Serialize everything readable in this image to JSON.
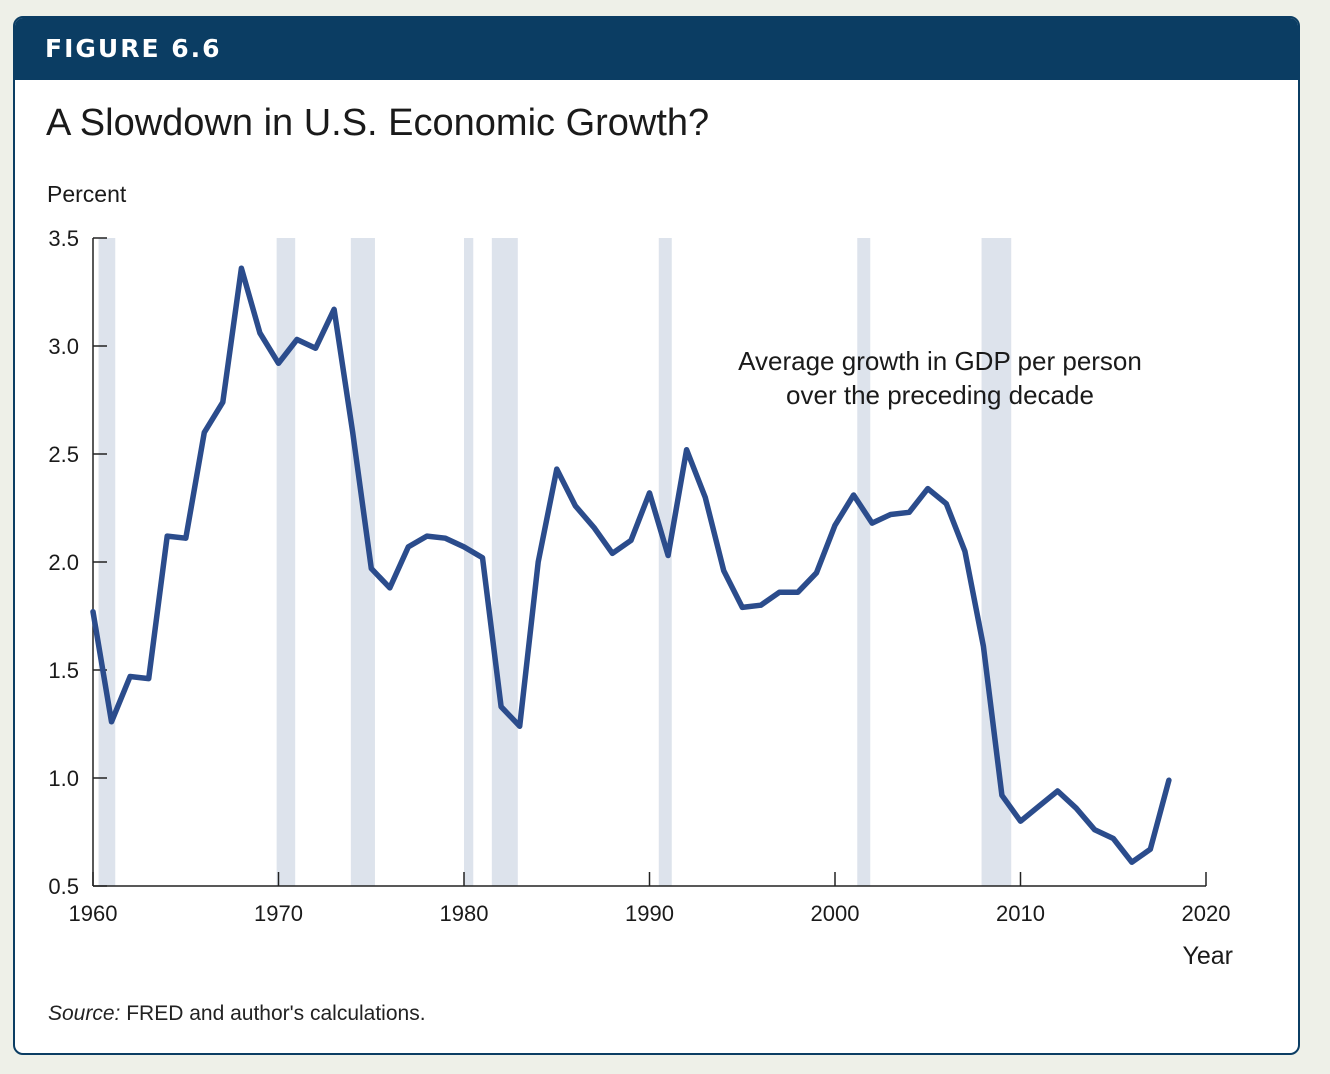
{
  "figure_label": "FIGURE 6.6",
  "title": "A Slowdown in U.S. Economic Growth?",
  "source_prefix": "Source:",
  "source_text": " FRED and author's calculations.",
  "chart_data": {
    "type": "line",
    "ylabel": "Percent",
    "xlabel": "Year",
    "xlim": [
      1960,
      2020
    ],
    "ylim": [
      0.5,
      3.5
    ],
    "x_ticks": [
      "1960",
      "1970",
      "1980",
      "1990",
      "2000",
      "2010",
      "2020"
    ],
    "y_ticks": [
      "3.5",
      "3.0",
      "2.5",
      "2.0",
      "1.5",
      "1.0",
      "0.5"
    ],
    "annotation_line1": "Average growth in GDP per person",
    "annotation_line2": "over the preceding decade",
    "line_color": "#2b4c8c",
    "band_color": "#dde3ec",
    "recessions": [
      [
        1960.3,
        1961.2
      ],
      [
        1969.9,
        1970.9
      ],
      [
        1973.9,
        1975.2
      ],
      [
        1980.0,
        1980.5
      ],
      [
        1981.5,
        1982.9
      ],
      [
        1990.5,
        1991.2
      ],
      [
        2001.2,
        2001.9
      ],
      [
        2007.9,
        2009.5
      ]
    ],
    "x": [
      1960,
      1961,
      1962,
      1963,
      1964,
      1965,
      1966,
      1967,
      1968,
      1969,
      1970,
      1971,
      1972,
      1973,
      1974,
      1975,
      1976,
      1977,
      1978,
      1979,
      1980,
      1981,
      1982,
      1983,
      1984,
      1985,
      1986,
      1987,
      1988,
      1989,
      1990,
      1991,
      1992,
      1993,
      1994,
      1995,
      1996,
      1997,
      1998,
      1999,
      2000,
      2001,
      2002,
      2003,
      2004,
      2005,
      2006,
      2007,
      2008,
      2009,
      2010,
      2011,
      2012,
      2013,
      2014,
      2015,
      2016,
      2017,
      2018
    ],
    "y": [
      1.77,
      1.26,
      1.47,
      1.46,
      2.12,
      2.11,
      2.6,
      2.74,
      3.36,
      3.06,
      2.92,
      3.03,
      2.99,
      3.17,
      2.6,
      1.97,
      1.88,
      2.07,
      2.12,
      2.11,
      2.07,
      2.02,
      1.33,
      1.24,
      2.0,
      2.43,
      2.26,
      2.16,
      2.04,
      2.1,
      2.32,
      2.03,
      2.52,
      2.3,
      1.96,
      1.79,
      1.8,
      1.86,
      1.86,
      1.95,
      2.17,
      2.31,
      2.18,
      2.22,
      2.23,
      2.34,
      2.27,
      2.05,
      1.61,
      0.92,
      0.8,
      0.87,
      0.94,
      0.86,
      0.76,
      0.72,
      0.61,
      0.67,
      0.99
    ]
  }
}
